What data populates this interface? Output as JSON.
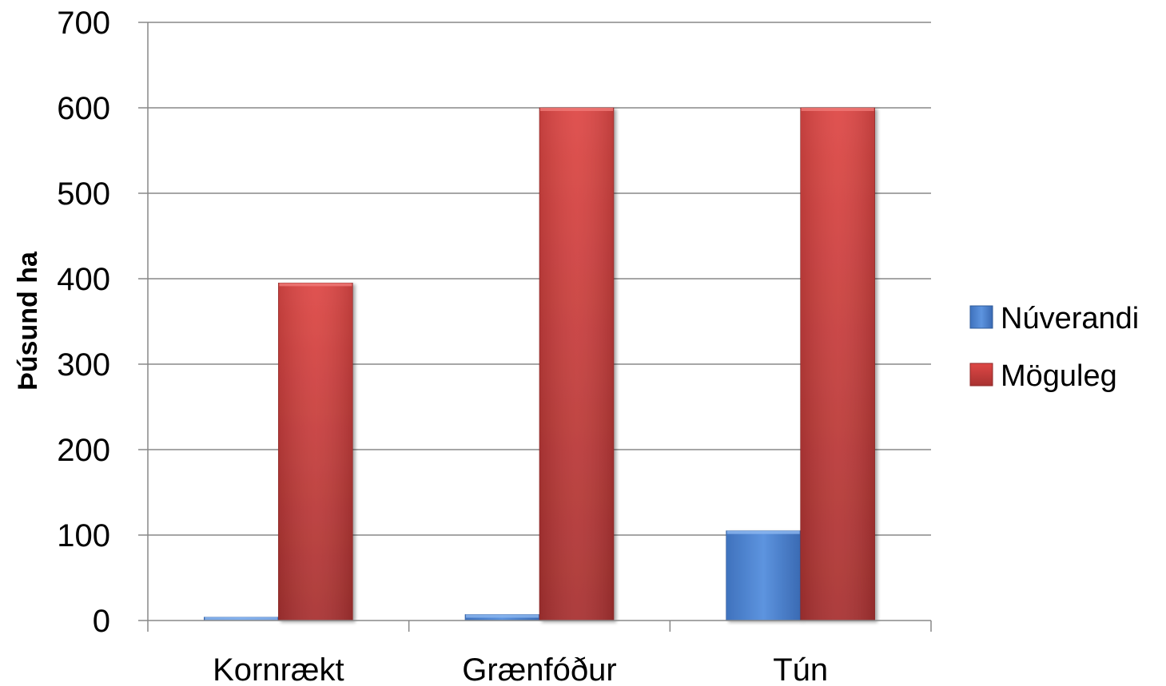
{
  "chart_data": {
    "type": "bar",
    "categories": [
      "Kornrækt",
      "Grænfóður",
      "Tún"
    ],
    "series": [
      {
        "name": "Núverandi",
        "values": [
          4,
          7,
          105
        ],
        "color": "#4a7ec8"
      },
      {
        "name": "Möguleg",
        "values": [
          395,
          600,
          600
        ],
        "color": "#c63d3b"
      }
    ],
    "title": "",
    "xlabel": "",
    "ylabel": "Þúsund ha",
    "ylim": [
      0,
      700
    ],
    "yticks": [
      0,
      100,
      200,
      300,
      400,
      500,
      600,
      700
    ],
    "grid": true,
    "legend_position": "right"
  }
}
